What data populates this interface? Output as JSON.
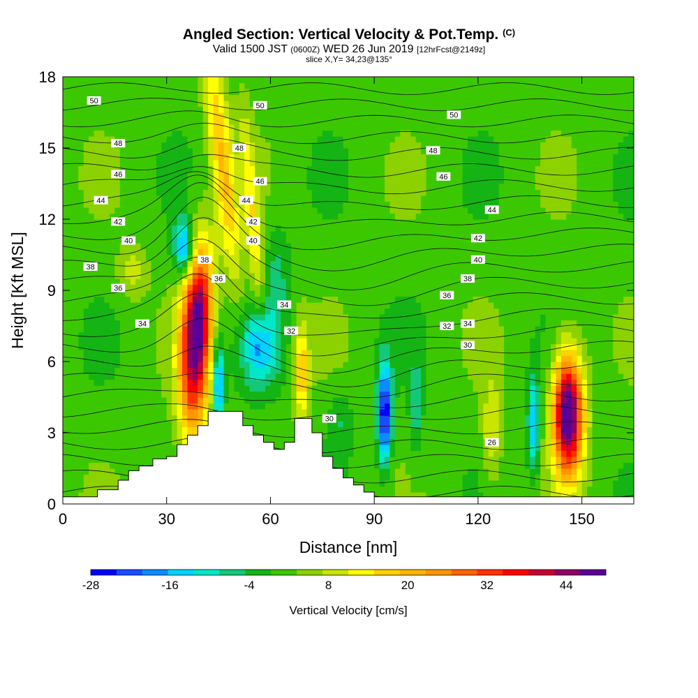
{
  "header": {
    "title": "Angled Section: Vertical Velocity & Pot.Temp.",
    "title_suffix": "(C)",
    "valid_prefix": "Valid 1500 JST",
    "valid_utc": "(0600Z)",
    "valid_date": "WED 26 Jun 2019",
    "forecast": "[12hrFcst@2149z]",
    "slice": "slice X,Y= 34,23@135°"
  },
  "chart_data": {
    "type": "heatmap",
    "title": "Angled Section: Vertical Velocity & Pot.Temp.",
    "xlabel": "Distance [nm]",
    "ylabel": "Height [Kft MSL]",
    "xlim": [
      0,
      165
    ],
    "ylim": [
      0,
      18
    ],
    "x_ticks": [
      0,
      30,
      60,
      90,
      120,
      150
    ],
    "y_ticks": [
      0,
      3,
      6,
      9,
      12,
      15,
      18
    ],
    "grid": false,
    "colorbar": {
      "label": "Vertical Velocity [cm/s]",
      "tick_labels": [
        "-28",
        "-16",
        "-4",
        "8",
        "20",
        "32",
        "44"
      ],
      "tick_values": [
        -28,
        -16,
        -4,
        8,
        20,
        32,
        44
      ],
      "range": [
        -28,
        50
      ],
      "step": 4,
      "colors": [
        "#0000ff",
        "#1a4cff",
        "#0a8cff",
        "#00d4ff",
        "#00e8c8",
        "#14c87a",
        "#14b414",
        "#3cc800",
        "#8cd200",
        "#c8e600",
        "#ffff00",
        "#ffd200",
        "#ffb400",
        "#ff9600",
        "#ff6400",
        "#ff3200",
        "#ff0000",
        "#c80032",
        "#8c0064",
        "#5a0096"
      ]
    },
    "terrain": [
      [
        0,
        0.3
      ],
      [
        10,
        0.3
      ],
      [
        10,
        0.6
      ],
      [
        16,
        0.6
      ],
      [
        16,
        1.0
      ],
      [
        19,
        1.0
      ],
      [
        19,
        1.4
      ],
      [
        22,
        1.4
      ],
      [
        22,
        1.6
      ],
      [
        26,
        1.6
      ],
      [
        26,
        1.9
      ],
      [
        30,
        1.9
      ],
      [
        30,
        2.0
      ],
      [
        33,
        2.0
      ],
      [
        33,
        2.5
      ],
      [
        36,
        2.5
      ],
      [
        36,
        2.9
      ],
      [
        39,
        2.9
      ],
      [
        39,
        3.3
      ],
      [
        42,
        3.3
      ],
      [
        42,
        3.9
      ],
      [
        52,
        3.9
      ],
      [
        52,
        3.3
      ],
      [
        55,
        3.3
      ],
      [
        55,
        2.9
      ],
      [
        58,
        2.9
      ],
      [
        58,
        2.6
      ],
      [
        61,
        2.6
      ],
      [
        61,
        2.3
      ],
      [
        64,
        2.3
      ],
      [
        64,
        2.6
      ],
      [
        67,
        2.6
      ],
      [
        67,
        3.6
      ],
      [
        72,
        3.6
      ],
      [
        72,
        3.0
      ],
      [
        75,
        3.0
      ],
      [
        75,
        2.0
      ],
      [
        78,
        2.0
      ],
      [
        78,
        1.5
      ],
      [
        81,
        1.5
      ],
      [
        81,
        1.1
      ],
      [
        84,
        1.1
      ],
      [
        84,
        0.8
      ],
      [
        87,
        0.8
      ],
      [
        87,
        0.5
      ],
      [
        90,
        0.5
      ],
      [
        90,
        0.3
      ],
      [
        165,
        0.3
      ]
    ],
    "velocity_features": [
      {
        "x": 38,
        "y": 6.5,
        "sx": 3.2,
        "sy": 2.6,
        "rot": 0.35,
        "w": 40
      },
      {
        "x": 40,
        "y": 8.5,
        "sx": 2.5,
        "sy": 1.8,
        "rot": 0.3,
        "w": 18
      },
      {
        "x": 146,
        "y": 3.8,
        "sx": 3.0,
        "sy": 1.8,
        "rot": 0,
        "w": 54
      },
      {
        "x": 46,
        "y": 14.5,
        "sx": 5.0,
        "sy": 1.8,
        "rot": -0.8,
        "w": 18
      },
      {
        "x": 55,
        "y": 11.8,
        "sx": 4.0,
        "sy": 1.3,
        "rot": -1.0,
        "w": 12
      },
      {
        "x": 69,
        "y": 5.5,
        "sx": 1.4,
        "sy": 1.4,
        "rot": 0,
        "w": 18
      },
      {
        "x": 124,
        "y": 3.0,
        "sx": 2.0,
        "sy": 1.6,
        "rot": 0,
        "w": 10
      },
      {
        "x": 20,
        "y": 9.8,
        "sx": 3.0,
        "sy": 0.8,
        "rot": 0,
        "w": 8
      },
      {
        "x": 93,
        "y": 3.8,
        "sx": 1.4,
        "sy": 1.5,
        "rot": 0,
        "w": -30
      },
      {
        "x": 57,
        "y": 6.6,
        "sx": 3.6,
        "sy": 1.2,
        "rot": 0,
        "w": -18
      },
      {
        "x": 35,
        "y": 10.8,
        "sx": 2.0,
        "sy": 0.9,
        "rot": 0,
        "w": -22
      },
      {
        "x": 45,
        "y": 5.0,
        "sx": 1.0,
        "sy": 1.2,
        "rot": 0,
        "w": -24
      },
      {
        "x": 136,
        "y": 3.3,
        "sx": 1.2,
        "sy": 1.4,
        "rot": 0,
        "w": -18
      },
      {
        "x": 102,
        "y": 4.0,
        "sx": 1.3,
        "sy": 1.6,
        "rot": 0,
        "w": -8
      },
      {
        "x": 80,
        "y": 3.5,
        "sx": 2.5,
        "sy": 1.0,
        "rot": 0,
        "w": -6
      },
      {
        "x": 62,
        "y": 9.5,
        "sx": 2.5,
        "sy": 1.6,
        "rot": 0,
        "w": -7
      }
    ],
    "contour_labels": [
      {
        "x": 9,
        "y": 17.0,
        "label": "50"
      },
      {
        "x": 57,
        "y": 16.8,
        "label": "50"
      },
      {
        "x": 113,
        "y": 16.4,
        "label": "50"
      },
      {
        "x": 16,
        "y": 15.2,
        "label": "48"
      },
      {
        "x": 51,
        "y": 15.0,
        "label": "48"
      },
      {
        "x": 107,
        "y": 14.9,
        "label": "48"
      },
      {
        "x": 16,
        "y": 13.9,
        "label": "46"
      },
      {
        "x": 57,
        "y": 13.6,
        "label": "46"
      },
      {
        "x": 110,
        "y": 13.8,
        "label": "46"
      },
      {
        "x": 11,
        "y": 12.8,
        "label": "44"
      },
      {
        "x": 53,
        "y": 12.8,
        "label": "44"
      },
      {
        "x": 124,
        "y": 12.4,
        "label": "44"
      },
      {
        "x": 16,
        "y": 11.9,
        "label": "42"
      },
      {
        "x": 55,
        "y": 11.9,
        "label": "42"
      },
      {
        "x": 120,
        "y": 11.2,
        "label": "42"
      },
      {
        "x": 19,
        "y": 11.1,
        "label": "40"
      },
      {
        "x": 55,
        "y": 11.1,
        "label": "40"
      },
      {
        "x": 120,
        "y": 10.3,
        "label": "40"
      },
      {
        "x": 8,
        "y": 10.0,
        "label": "38"
      },
      {
        "x": 41,
        "y": 10.3,
        "label": "38"
      },
      {
        "x": 117,
        "y": 9.5,
        "label": "38"
      },
      {
        "x": 16,
        "y": 9.1,
        "label": "36"
      },
      {
        "x": 45,
        "y": 9.5,
        "label": "36"
      },
      {
        "x": 111,
        "y": 8.8,
        "label": "36"
      },
      {
        "x": 23,
        "y": 7.6,
        "label": "34"
      },
      {
        "x": 64,
        "y": 8.4,
        "label": "34"
      },
      {
        "x": 117,
        "y": 7.6,
        "label": "34"
      },
      {
        "x": 66,
        "y": 7.3,
        "label": "32"
      },
      {
        "x": 111,
        "y": 7.5,
        "label": "32"
      },
      {
        "x": 117,
        "y": 6.7,
        "label": "30"
      },
      {
        "x": 77,
        "y": 3.6,
        "label": "30"
      },
      {
        "x": 124,
        "y": 2.6,
        "label": "26"
      }
    ]
  }
}
